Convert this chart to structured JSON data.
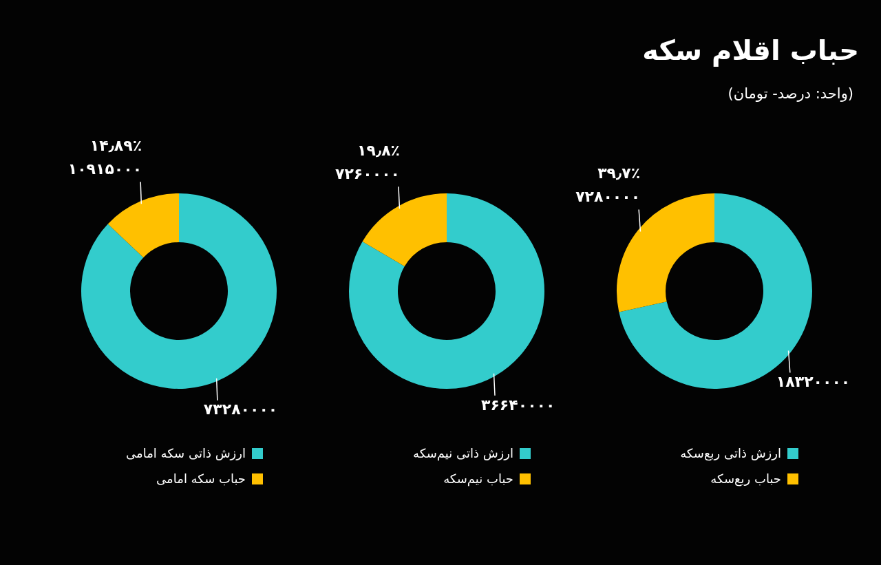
{
  "chart_data": [
    {
      "type": "donut",
      "title": "حباب اقلام سکه",
      "subtitle": "(واحد: درصد- تومان)",
      "categories": [
        "ارزش ذاتی ربع‌سکه",
        "حباب ربع‌سکه"
      ],
      "values": [
        18320000,
        7280000
      ],
      "colors": [
        "#33cccc",
        "#ffc000"
      ],
      "value_labels": [
        "۱۸۳۲۰۰۰۰",
        "۷۲۸۰۰۰۰"
      ],
      "annotations": [
        {
          "text": "۳۹٫۷٪",
          "x": "حباب ربع‌سکه"
        }
      ],
      "legend": "bottom"
    },
    {
      "type": "donut",
      "categories": [
        "ارزش ذاتی نیم‌سکه",
        "حباب نیم‌سکه"
      ],
      "values": [
        36640000,
        7260000
      ],
      "colors": [
        "#33cccc",
        "#ffc000"
      ],
      "value_labels": [
        "۳۶۶۴۰۰۰۰",
        "۷۲۶۰۰۰۰"
      ],
      "annotations": [
        {
          "text": "۱۹٫۸٪",
          "x": "حباب نیم‌سکه"
        }
      ],
      "legend": "bottom"
    },
    {
      "type": "donut",
      "categories": [
        "ارزش ذاتی سکه امامی",
        "حباب سکه امامی"
      ],
      "values": [
        73280000,
        10915000
      ],
      "colors": [
        "#33cccc",
        "#ffc000"
      ],
      "value_labels": [
        "۷۳۲۸۰۰۰۰",
        "۱۰۹۱۵۰۰۰"
      ],
      "annotations": [
        {
          "text": "۱۴٫۸۹٪",
          "x": "حباب سکه امامی"
        }
      ],
      "legend": "bottom"
    }
  ]
}
